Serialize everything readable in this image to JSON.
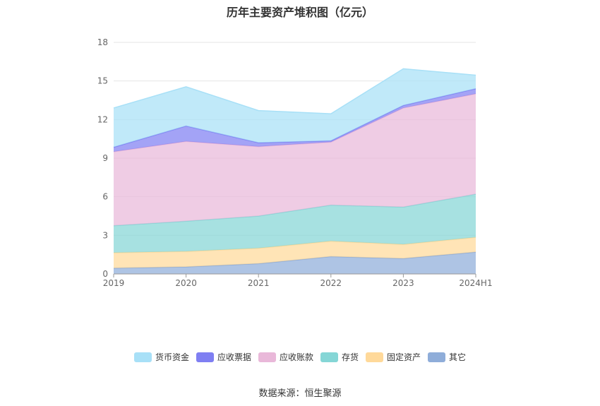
{
  "chart_data": {
    "type": "area",
    "title": "历年主要资产堆积图（亿元）",
    "source": "数据来源：恒生聚源",
    "categories": [
      "2019",
      "2020",
      "2021",
      "2022",
      "2023",
      "2024H1"
    ],
    "ylim": [
      0,
      18
    ],
    "yticks": [
      "0",
      "3",
      "6",
      "9",
      "12",
      "15",
      "18"
    ],
    "grid": true,
    "legend_position": "bottom",
    "stacked": true,
    "series": [
      {
        "name": "其它",
        "color": "#8fadd9",
        "values": [
          0.45,
          0.55,
          0.8,
          1.35,
          1.2,
          1.7
        ]
      },
      {
        "name": "固定资产",
        "color": "#ffd99a",
        "values": [
          1.2,
          1.2,
          1.2,
          1.2,
          1.1,
          1.15
        ]
      },
      {
        "name": "存货",
        "color": "#85d6d6",
        "values": [
          2.1,
          2.35,
          2.5,
          2.8,
          2.9,
          3.35
        ]
      },
      {
        "name": "应收账款",
        "color": "#e9b8d9",
        "values": [
          5.75,
          6.2,
          5.4,
          4.9,
          7.7,
          7.8
        ]
      },
      {
        "name": "应收票据",
        "color": "#7f7ff2",
        "values": [
          0.35,
          1.2,
          0.3,
          0.1,
          0.2,
          0.4
        ]
      },
      {
        "name": "货币资金",
        "color": "#a8e0f7",
        "values": [
          3.05,
          3.05,
          2.5,
          2.1,
          2.85,
          1.05
        ]
      }
    ],
    "legend_order": [
      "货币资金",
      "应收票据",
      "应收账款",
      "存货",
      "固定资产",
      "其它"
    ]
  }
}
